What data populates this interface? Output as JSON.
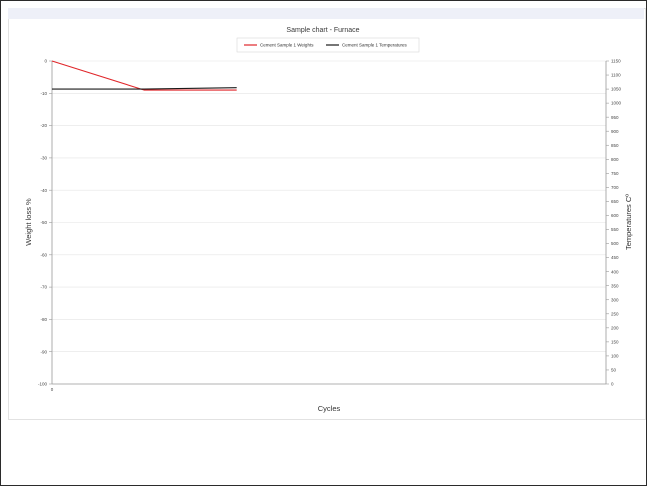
{
  "chart_data": {
    "type": "line",
    "title": "Sample chart - Furnace",
    "xlabel": "Cycles",
    "ylabel_left": "Weight loss %",
    "ylabel_right": "Temperatures Cº",
    "x": [
      0,
      1,
      2
    ],
    "x_tick_labels": [
      "0"
    ],
    "y_left_ticks": [
      "0",
      "-10",
      "-20",
      "-30",
      "-40",
      "-50",
      "-60",
      "-70",
      "-80",
      "-90",
      "-100"
    ],
    "y_right_ticks": [
      "1150",
      "1100",
      "1050",
      "1000",
      "950",
      "900",
      "850",
      "800",
      "750",
      "700",
      "650",
      "600",
      "550",
      "500",
      "450",
      "400",
      "350",
      "300",
      "250",
      "200",
      "150",
      "100",
      "50",
      "0"
    ],
    "ylim_left": [
      -100,
      0
    ],
    "ylim_right": [
      0,
      1150
    ],
    "grid": true,
    "legend_position": "top",
    "series": [
      {
        "name": "Cement Sample 1 Weights",
        "axis": "left",
        "color": "#e0262a",
        "values": [
          0,
          -9,
          -9
        ]
      },
      {
        "name": "Cement Sample 1 Temperatures",
        "axis": "right",
        "color": "#1a1a1a",
        "values": [
          1050,
          1050,
          1055
        ]
      }
    ]
  }
}
